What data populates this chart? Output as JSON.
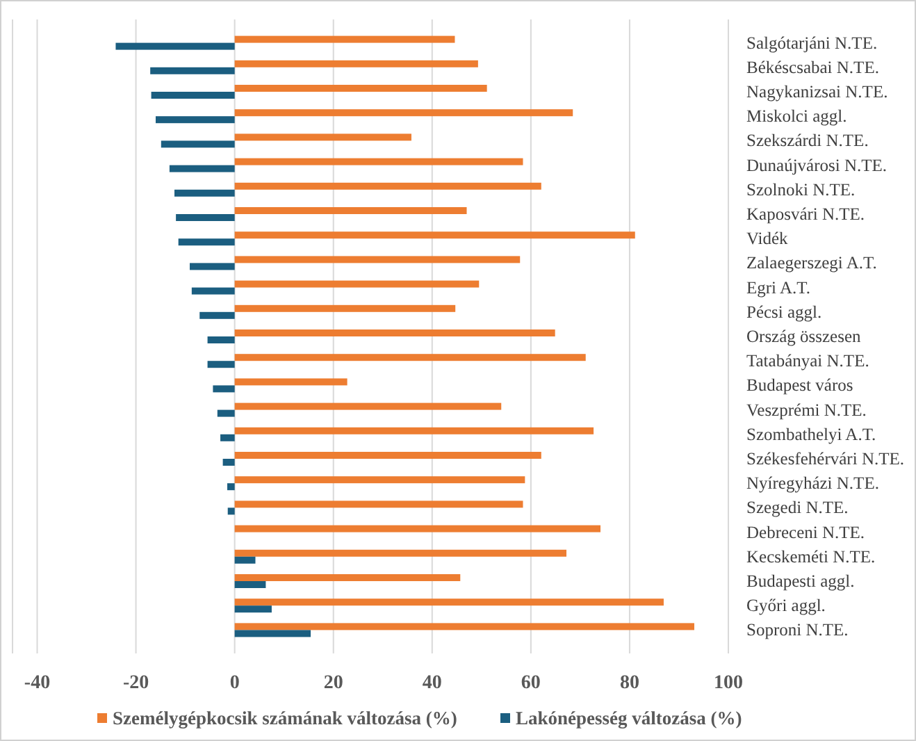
{
  "chart_data": {
    "type": "bar",
    "orientation": "horizontal",
    "categories": [
      "Salgótarjáni N.TE.",
      "Békéscsabai N.TE.",
      "Nagykanizsai N.TE.",
      "Miskolci aggl.",
      "Szekszárdi N.TE.",
      "Dunaújvárosi N.TE.",
      "Szolnoki N.TE.",
      "Kaposvári N.TE.",
      "Vidék",
      "Zalaegerszegi A.T.",
      "Egri A.T.",
      "Pécsi aggl.",
      "Ország összesen",
      "Tatabányai N.TE.",
      "Budapest város",
      "Veszprémi N.TE.",
      "Szombathelyi A.T.",
      "Székesfehérvári N.TE.",
      "Nyíregyházi N.TE.",
      "Szegedi N.TE.",
      "Debreceni N.TE.",
      "Kecskeméti N.TE.",
      "Budapesti aggl.",
      "Győri aggl.",
      "Soproni N.TE."
    ],
    "series": [
      {
        "name": "Személygépkocsik számának változása (%)",
        "color": "#ed7d31",
        "values": [
          44.6,
          49.3,
          51.1,
          68.5,
          35.8,
          58.4,
          62.1,
          47.0,
          81.1,
          57.8,
          49.5,
          44.7,
          64.9,
          71.1,
          22.8,
          54.0,
          72.7,
          62.1,
          58.8,
          58.4,
          74.1,
          67.2,
          45.7,
          86.9,
          93.1
        ]
      },
      {
        "name": "Lakónépesség változása (%)",
        "color": "#1b5e80",
        "values": [
          -24.1,
          -17.1,
          -16.9,
          -16.0,
          -14.9,
          -13.2,
          -12.2,
          -11.9,
          -11.4,
          -9.1,
          -8.7,
          -7.1,
          -5.5,
          -5.5,
          -4.4,
          -3.5,
          -2.9,
          -2.4,
          -1.5,
          -1.4,
          0,
          4.2,
          6.3,
          7.5,
          15.4
        ]
      }
    ],
    "xlim": [
      -45,
      100
    ],
    "xticks": [
      -40,
      -20,
      0,
      20,
      40,
      60,
      80,
      100
    ],
    "grid": "x",
    "legend": "bottom"
  }
}
